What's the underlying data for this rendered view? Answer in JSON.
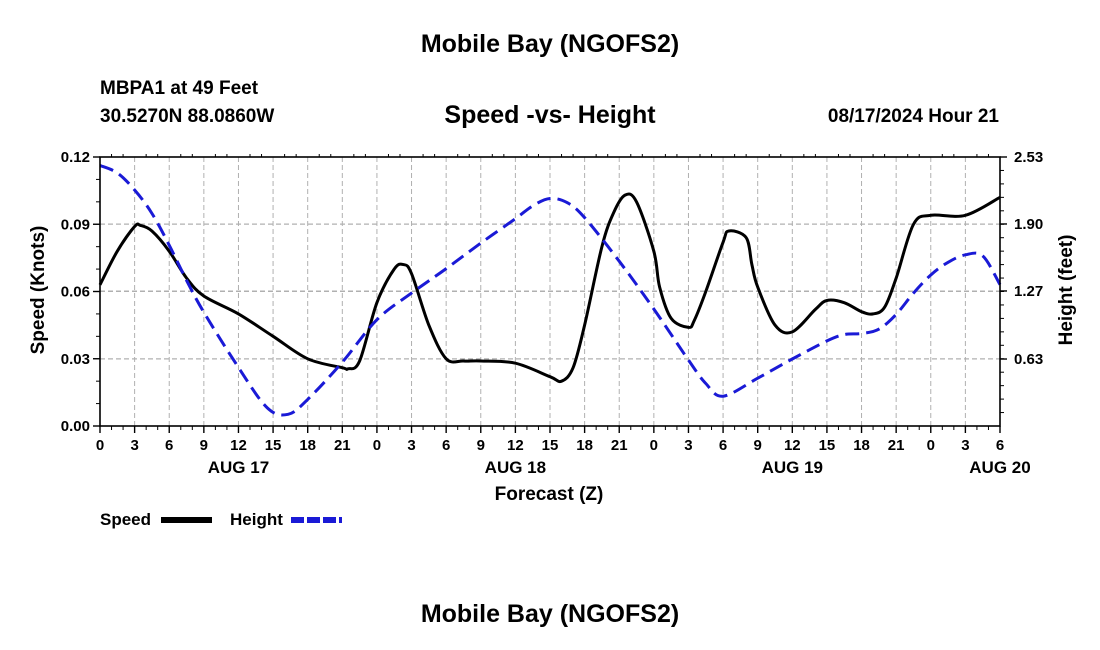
{
  "header": {
    "title": "Mobile Bay (NGOFS2)",
    "station": "MBPA1 at 49 Feet",
    "coords": "30.5270N  88.0860W",
    "datetime": "08/17/2024 Hour 21"
  },
  "footer": {
    "title": "Mobile Bay (NGOFS2)"
  },
  "legend": {
    "speed_label": "Speed",
    "height_label": "Height",
    "placement": "bottom-left"
  },
  "colors": {
    "speed": "#000000",
    "height": "#1a1ad6",
    "grid": "#b0b0b0"
  },
  "chart_data": {
    "type": "line",
    "title": "Speed -vs- Height",
    "xlabel": "Forecast (Z)",
    "ylabel": "Speed (Knots)",
    "y2label": "Height (feet)",
    "x_unit": "hours since 2024-08-17 00Z",
    "xlim": [
      0,
      78
    ],
    "ylim": [
      0,
      0.12
    ],
    "y2lim": [
      0,
      2.53
    ],
    "x_ticks": [
      0,
      3,
      6,
      9,
      12,
      15,
      18,
      21,
      24,
      27,
      30,
      33,
      36,
      39,
      42,
      45,
      48,
      51,
      54,
      57,
      60,
      63,
      66,
      69,
      72,
      75,
      78
    ],
    "x_tick_labels": [
      "0",
      "3",
      "6",
      "9",
      "12",
      "15",
      "18",
      "21",
      "0",
      "3",
      "6",
      "9",
      "12",
      "15",
      "18",
      "21",
      "0",
      "3",
      "6",
      "9",
      "12",
      "15",
      "18",
      "21",
      "0",
      "3",
      "6"
    ],
    "day_labels": [
      {
        "x": 12,
        "label": "AUG 17"
      },
      {
        "x": 36,
        "label": "AUG 18"
      },
      {
        "x": 60,
        "label": "AUG 19"
      },
      {
        "x": 78,
        "label": "AUG 20"
      }
    ],
    "y_ticks": [
      0,
      0.03,
      0.06,
      0.09,
      0.12
    ],
    "y_tick_labels": [
      "0.00",
      "0.03",
      "0.06",
      "0.09",
      "0.12"
    ],
    "y2_ticks": [
      0.63,
      1.27,
      1.9,
      2.53
    ],
    "y2_tick_labels": [
      "0.63",
      "1.27",
      "1.90",
      "2.53"
    ],
    "grid": true,
    "series": [
      {
        "name": "Speed",
        "axis": "left",
        "style": "solid",
        "x": [
          0,
          1.5,
          3,
          3.5,
          4.5,
          6,
          7.5,
          9,
          12,
          15,
          18,
          21,
          21.5,
          22.5,
          24,
          25.5,
          26.3,
          27,
          28.5,
          30,
          31.5,
          33,
          36,
          39,
          40,
          41,
          42,
          43.5,
          44.5,
          45.5,
          46.5,
          48,
          48.5,
          49.5,
          51,
          51.5,
          52.5,
          54,
          54.5,
          56,
          56.5,
          57,
          58.5,
          60,
          62,
          63,
          64.5,
          66,
          67,
          68,
          69,
          70.5,
          72,
          75,
          78
        ],
        "y": [
          0.063,
          0.078,
          0.089,
          0.0895,
          0.087,
          0.078,
          0.066,
          0.058,
          0.05,
          0.04,
          0.03,
          0.026,
          0.0255,
          0.029,
          0.055,
          0.07,
          0.072,
          0.068,
          0.045,
          0.03,
          0.029,
          0.029,
          0.028,
          0.022,
          0.02,
          0.026,
          0.045,
          0.08,
          0.095,
          0.103,
          0.1,
          0.078,
          0.062,
          0.048,
          0.044,
          0.047,
          0.06,
          0.082,
          0.087,
          0.084,
          0.072,
          0.062,
          0.045,
          0.042,
          0.052,
          0.056,
          0.055,
          0.051,
          0.05,
          0.053,
          0.066,
          0.09,
          0.094,
          0.094,
          0.102
        ]
      },
      {
        "name": "Height",
        "axis": "right",
        "style": "dashed",
        "x": [
          0,
          1.5,
          3,
          4.5,
          6,
          7.5,
          9,
          12,
          14.5,
          16.3,
          18,
          21,
          24,
          27,
          30,
          33,
          36,
          37.5,
          39,
          40.5,
          42,
          45,
          48,
          51,
          52.5,
          54,
          57,
          60,
          63,
          64.5,
          66,
          67.5,
          69,
          70.5,
          72,
          73.5,
          75,
          76.5,
          78
        ],
        "y": [
          2.45,
          2.38,
          2.22,
          2.0,
          1.7,
          1.37,
          1.07,
          0.55,
          0.17,
          0.11,
          0.25,
          0.6,
          1.0,
          1.25,
          1.48,
          1.72,
          1.95,
          2.07,
          2.14,
          2.1,
          1.96,
          1.55,
          1.1,
          0.62,
          0.4,
          0.28,
          0.45,
          0.63,
          0.8,
          0.86,
          0.87,
          0.91,
          1.05,
          1.25,
          1.42,
          1.54,
          1.61,
          1.6,
          1.33
        ]
      }
    ]
  }
}
